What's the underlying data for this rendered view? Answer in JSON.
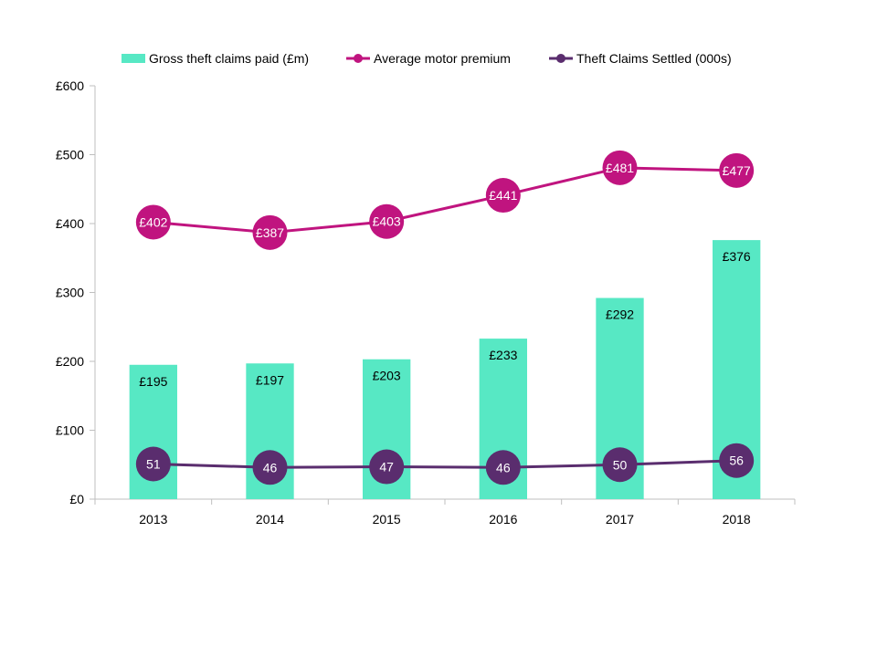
{
  "chart_data": {
    "type": "bar",
    "categories": [
      "2013",
      "2014",
      "2015",
      "2016",
      "2017",
      "2018"
    ],
    "series": [
      {
        "name": "Gross theft claims paid (£m)",
        "type": "bar",
        "values": [
          195,
          197,
          203,
          233,
          292,
          376
        ],
        "labels": [
          "£195",
          "£197",
          "£203",
          "£233",
          "£292",
          "£376"
        ],
        "color": "#57E8C4"
      },
      {
        "name": "Average motor premium",
        "type": "line",
        "values": [
          402,
          387,
          403,
          441,
          481,
          477
        ],
        "labels": [
          "£402",
          "£387",
          "£403",
          "£441",
          "£481",
          "£477"
        ],
        "color": "#C0147F"
      },
      {
        "name": "Theft Claims Settled (000s)",
        "type": "line",
        "values": [
          51,
          46,
          47,
          46,
          50,
          56
        ],
        "labels": [
          "51",
          "46",
          "47",
          "46",
          "50",
          "56"
        ],
        "color": "#5A2D6E"
      }
    ],
    "yticks": [
      "£0",
      "£100",
      "£200",
      "£300",
      "£400",
      "£500",
      "£600"
    ],
    "ylim": [
      0,
      600
    ],
    "title": "",
    "xlabel": "",
    "ylabel": "",
    "grid": false,
    "legend_position": "top"
  }
}
